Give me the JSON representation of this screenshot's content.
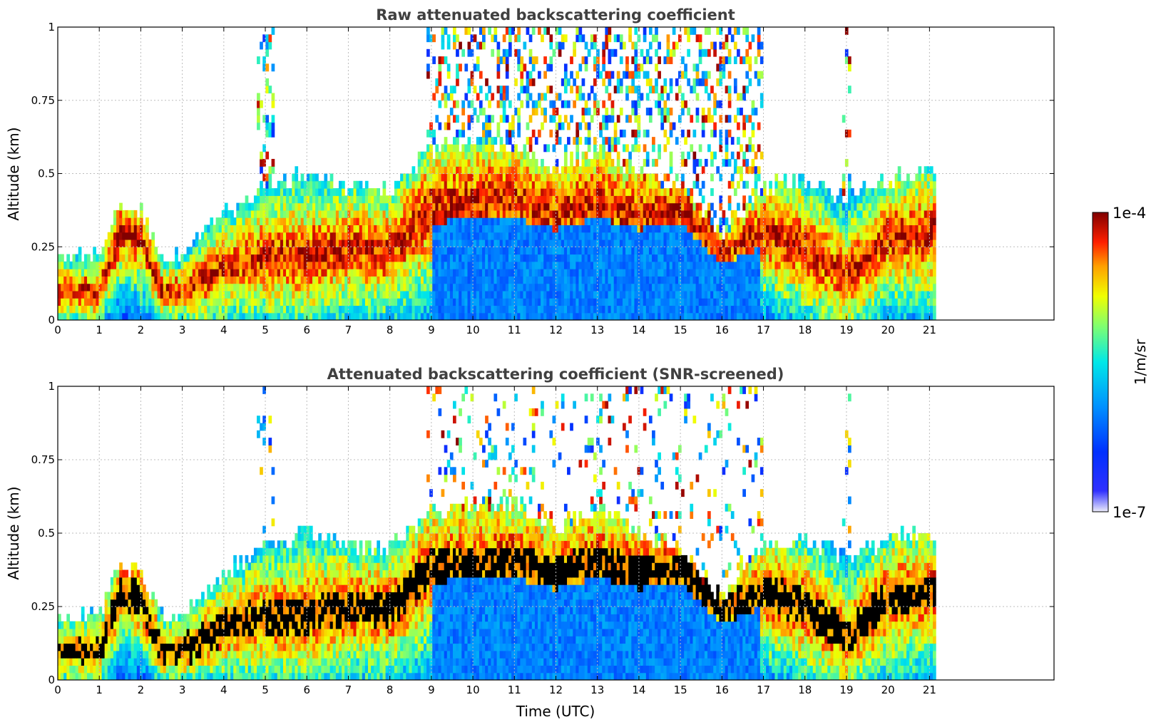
{
  "chart_data": [
    {
      "type": "heatmap",
      "title": "Raw attenuated backscattering coefficient",
      "xlabel": "",
      "ylabel": "Altitude (km)",
      "xlim": [
        0,
        24
      ],
      "ylim": [
        0,
        1
      ],
      "x_ticks": [
        "0",
        "1",
        "2",
        "3",
        "4",
        "5",
        "6",
        "7",
        "8",
        "9",
        "10",
        "11",
        "12",
        "13",
        "14",
        "15",
        "16",
        "17",
        "18",
        "19",
        "20",
        "21"
      ],
      "y_ticks": [
        "0",
        "0.25",
        "0.5",
        "0.75",
        "1"
      ],
      "grid": true,
      "data_end_hour": 21.15,
      "layer_profile": {
        "time_utc": [
          0,
          1,
          1.5,
          2,
          2.5,
          3,
          4,
          5,
          6,
          7,
          8,
          9,
          10,
          11,
          12,
          13,
          14,
          15,
          16,
          17,
          18,
          19,
          20,
          21
        ],
        "layer_top_km": [
          0.22,
          0.22,
          0.4,
          0.38,
          0.22,
          0.22,
          0.36,
          0.46,
          0.5,
          0.46,
          0.44,
          0.58,
          0.6,
          0.6,
          0.52,
          0.58,
          0.5,
          0.45,
          0.28,
          0.45,
          0.48,
          0.42,
          0.48,
          0.5
        ],
        "strong_core_km": [
          0.1,
          0.1,
          0.3,
          0.28,
          0.1,
          0.1,
          0.18,
          0.22,
          0.22,
          0.25,
          0.24,
          0.38,
          0.4,
          0.4,
          0.36,
          0.4,
          0.36,
          0.38,
          0.24,
          0.3,
          0.25,
          0.15,
          0.28,
          0.3
        ]
      }
    },
    {
      "type": "heatmap",
      "title": "Attenuated backscattering coefficient (SNR-screened)",
      "xlabel": "Time (UTC)",
      "ylabel": "Altitude (km)",
      "xlim": [
        0,
        24
      ],
      "ylim": [
        0,
        1
      ],
      "x_ticks": [
        "0",
        "1",
        "2",
        "3",
        "4",
        "5",
        "6",
        "7",
        "8",
        "9",
        "10",
        "11",
        "12",
        "13",
        "14",
        "15",
        "16",
        "17",
        "18",
        "19",
        "20",
        "21"
      ],
      "y_ticks": [
        "0",
        "0.25",
        "0.5",
        "0.75",
        "1"
      ],
      "grid": true,
      "data_end_hour": 21.15,
      "screened": true
    }
  ],
  "colorbar": {
    "label": "1/m/sr",
    "max_label": "1e-4",
    "min_label": "1e-7",
    "colormap": "jet",
    "colors": [
      "#e8e8f8",
      "#0000ff",
      "#0080ff",
      "#00e0ff",
      "#80ff80",
      "#ffff00",
      "#ff8000",
      "#ff0000",
      "#800000"
    ]
  }
}
